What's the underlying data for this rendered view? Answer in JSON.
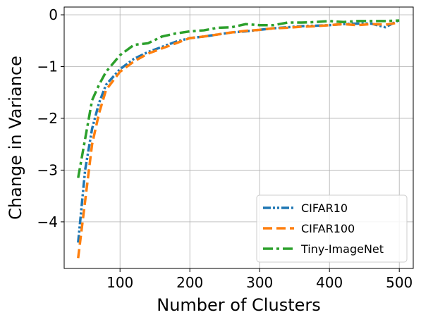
{
  "chart_data": {
    "type": "line",
    "title": "",
    "xlabel": "Number of Clusters",
    "ylabel": "Change in Variance",
    "xlim": [
      20,
      520
    ],
    "ylim": [
      -4.9,
      0.15
    ],
    "xticks": [
      100,
      200,
      300,
      400,
      500
    ],
    "yticks": [
      0,
      -1,
      -2,
      -3,
      -4
    ],
    "xtick_labels": [
      "100",
      "200",
      "300",
      "400",
      "500"
    ],
    "ytick_labels": [
      "0",
      "−1",
      "−2",
      "−3",
      "−4"
    ],
    "grid": true,
    "legend_position": "lower-right",
    "series": [
      {
        "name": "CIFAR10",
        "color": "#1f77b4",
        "style": "dash-dot-dot",
        "x": [
          40,
          50,
          60,
          70,
          80,
          100,
          120,
          140,
          160,
          180,
          200,
          220,
          240,
          260,
          280,
          300,
          320,
          340,
          360,
          380,
          400,
          420,
          440,
          460,
          480,
          500
        ],
        "y": [
          -4.4,
          -3.0,
          -2.2,
          -1.7,
          -1.35,
          -1.05,
          -0.85,
          -0.72,
          -0.62,
          -0.52,
          -0.45,
          -0.42,
          -0.38,
          -0.34,
          -0.32,
          -0.29,
          -0.26,
          -0.24,
          -0.22,
          -0.21,
          -0.2,
          -0.18,
          -0.17,
          -0.17,
          -0.24,
          -0.1
        ]
      },
      {
        "name": "CIFAR100",
        "color": "#ff7f0e",
        "style": "dashed",
        "x": [
          40,
          50,
          60,
          70,
          80,
          100,
          120,
          140,
          160,
          180,
          200,
          220,
          240,
          260,
          280,
          300,
          320,
          340,
          360,
          380,
          400,
          420,
          440,
          460,
          480,
          500
        ],
        "y": [
          -4.7,
          -3.6,
          -2.5,
          -1.9,
          -1.45,
          -1.1,
          -0.9,
          -0.75,
          -0.65,
          -0.55,
          -0.45,
          -0.42,
          -0.38,
          -0.34,
          -0.31,
          -0.29,
          -0.26,
          -0.25,
          -0.23,
          -0.22,
          -0.2,
          -0.18,
          -0.2,
          -0.18,
          -0.19,
          -0.15
        ]
      },
      {
        "name": "Tiny-ImageNet",
        "color": "#2ca02c",
        "style": "dash-dot",
        "x": [
          40,
          50,
          60,
          70,
          80,
          100,
          120,
          140,
          160,
          180,
          200,
          220,
          240,
          260,
          280,
          300,
          320,
          340,
          360,
          380,
          400,
          420,
          440,
          460,
          480,
          500
        ],
        "y": [
          -3.15,
          -2.4,
          -1.65,
          -1.35,
          -1.1,
          -0.78,
          -0.58,
          -0.55,
          -0.42,
          -0.36,
          -0.32,
          -0.3,
          -0.25,
          -0.24,
          -0.18,
          -0.2,
          -0.2,
          -0.15,
          -0.15,
          -0.14,
          -0.12,
          -0.14,
          -0.12,
          -0.12,
          -0.12,
          -0.11
        ]
      }
    ]
  }
}
